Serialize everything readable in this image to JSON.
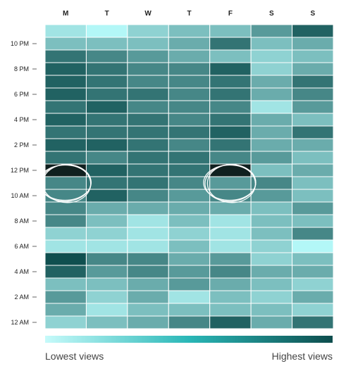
{
  "chart_data": {
    "type": "heatmap",
    "title": "",
    "x_categories": [
      "M",
      "T",
      "W",
      "T",
      "F",
      "S",
      "S"
    ],
    "y_categories": [
      "12 AM",
      "1 AM",
      "2 AM",
      "3 AM",
      "4 AM",
      "5 AM",
      "6 AM",
      "7 AM",
      "8 AM",
      "9 AM",
      "10 AM",
      "11 AM",
      "12 PM",
      "1 PM",
      "2 PM",
      "3 PM",
      "4 PM",
      "5 PM",
      "6 PM",
      "7 PM",
      "8 PM",
      "9 PM",
      "10 PM",
      "11 PM"
    ],
    "y_tick_labels": [
      "12 AM",
      "2 AM",
      "4 AM",
      "6 AM",
      "8 AM",
      "10 AM",
      "12 PM",
      "2 PM",
      "4 PM",
      "6 PM",
      "8 PM",
      "10 PM"
    ],
    "value_scale": [
      0,
      9
    ],
    "values_by_hour_from_12am": [
      [
        2,
        3,
        4,
        6,
        8,
        4,
        7
      ],
      [
        4,
        1,
        3,
        3,
        3,
        3,
        2
      ],
      [
        5,
        2,
        4,
        1,
        3,
        2,
        4
      ],
      [
        3,
        3,
        4,
        5,
        4,
        3,
        2
      ],
      [
        8,
        5,
        6,
        5,
        6,
        4,
        4
      ],
      [
        9,
        6,
        6,
        4,
        5,
        2,
        3
      ],
      [
        1,
        1,
        1,
        3,
        1,
        2,
        0
      ],
      [
        2,
        2,
        1,
        2,
        1,
        3,
        6
      ],
      [
        6,
        3,
        1,
        3,
        1,
        3,
        3
      ],
      [
        6,
        4,
        4,
        4,
        4,
        3,
        5
      ],
      [
        6,
        8,
        6,
        5,
        6,
        5,
        3
      ],
      [
        6,
        7,
        7,
        6,
        5,
        6,
        3
      ],
      [
        10,
        8,
        7,
        7,
        10,
        3,
        4
      ],
      [
        7,
        6,
        7,
        7,
        6,
        5,
        3
      ],
      [
        8,
        8,
        7,
        6,
        7,
        4,
        4
      ],
      [
        7,
        7,
        7,
        7,
        8,
        4,
        7
      ],
      [
        8,
        7,
        7,
        6,
        7,
        4,
        3
      ],
      [
        7,
        8,
        6,
        6,
        6,
        1,
        5
      ],
      [
        8,
        7,
        7,
        6,
        7,
        4,
        6
      ],
      [
        8,
        7,
        6,
        6,
        7,
        4,
        7
      ],
      [
        8,
        7,
        6,
        6,
        8,
        2,
        4
      ],
      [
        7,
        6,
        5,
        4,
        3,
        2,
        3
      ],
      [
        3,
        3,
        3,
        4,
        7,
        3,
        4
      ],
      [
        1,
        0,
        2,
        3,
        3,
        5,
        8
      ]
    ],
    "highlighted_cells": [
      {
        "day": "M",
        "hour": "11 AM"
      },
      {
        "day": "F",
        "hour": "11 AM"
      }
    ],
    "color_low": "#b3f7f7",
    "color_high": "#0f4f4f",
    "color_peak": "#10201f",
    "legend": {
      "low_label": "Lowest views",
      "high_label": "Highest views"
    }
  }
}
